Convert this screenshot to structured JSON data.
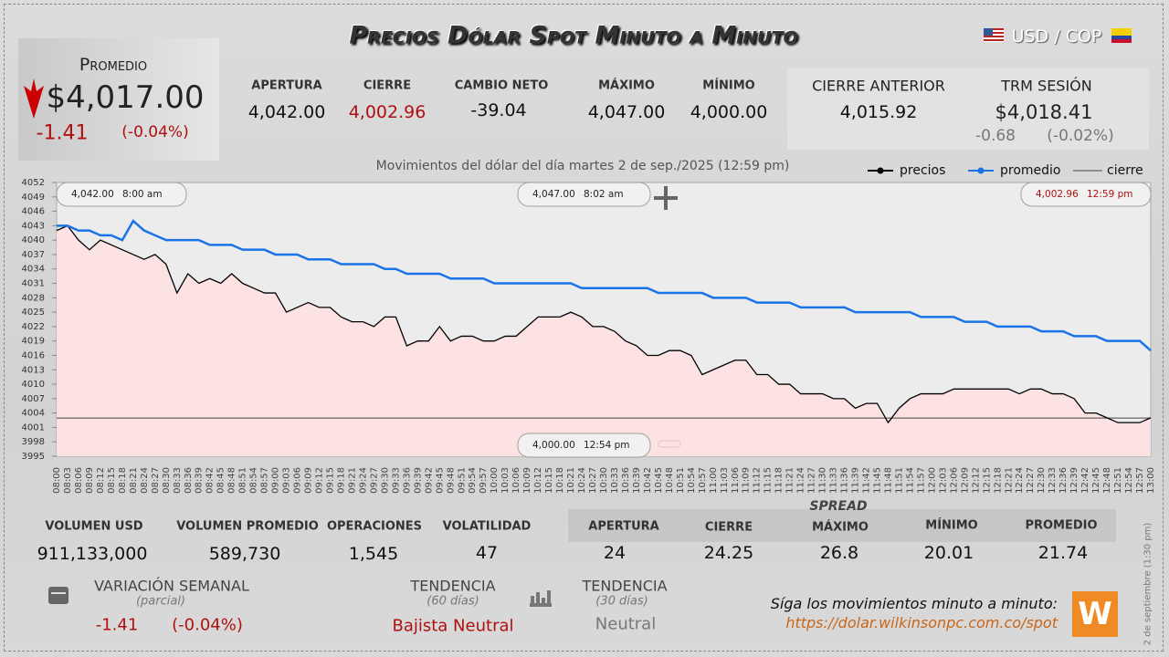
{
  "header": {
    "title": "Precios Dólar Spot Minuto a Minuto",
    "pair": "USD / COP"
  },
  "average_box": {
    "label": "Promedio",
    "value": "$4,017.00",
    "change": "-1.41",
    "change_pct": "(-0.04%)"
  },
  "stats": [
    {
      "label": "APERTURA",
      "value": "4,042.00"
    },
    {
      "label": "CIERRE",
      "value": "4,002.96"
    },
    {
      "label": "CAMBIO NETO",
      "value": "-39.04"
    },
    {
      "label": "MÁXIMO",
      "value": "4,047.00"
    },
    {
      "label": "MÍNIMO",
      "value": "4,000.00"
    }
  ],
  "previous_close": {
    "label": "CIERRE ANTERIOR",
    "value": "4,015.92"
  },
  "trm": {
    "label": "TRM SESIÓN",
    "value": "$4,018.41",
    "change": "-0.68",
    "change_pct": "(-0.02%)"
  },
  "chart_data": {
    "type": "line",
    "title": "Movimientos del dólar del día martes 2 de sep./2025 (12:59 pm)",
    "categories": [
      "08:00",
      "08:03",
      "08:06",
      "08:09",
      "08:12",
      "08:15",
      "08:18",
      "08:21",
      "08:24",
      "08:27",
      "08:30",
      "08:33",
      "08:36",
      "08:39",
      "08:42",
      "08:45",
      "08:48",
      "08:51",
      "08:54",
      "08:57",
      "09:00",
      "09:03",
      "09:06",
      "09:09",
      "09:12",
      "09:15",
      "09:18",
      "09:21",
      "09:24",
      "09:27",
      "09:30",
      "09:33",
      "09:36",
      "09:39",
      "09:42",
      "09:45",
      "09:48",
      "09:51",
      "09:54",
      "09:57",
      "10:00",
      "10:03",
      "10:06",
      "10:09",
      "10:12",
      "10:15",
      "10:18",
      "10:21",
      "10:24",
      "10:27",
      "10:30",
      "10:33",
      "10:36",
      "10:39",
      "10:42",
      "10:45",
      "10:48",
      "10:51",
      "10:54",
      "10:57",
      "11:00",
      "11:03",
      "11:06",
      "11:09",
      "11:12",
      "11:15",
      "11:18",
      "11:21",
      "11:24",
      "11:27",
      "11:30",
      "11:33",
      "11:36",
      "11:39",
      "11:42",
      "11:45",
      "11:48",
      "11:51",
      "11:54",
      "11:57",
      "12:00",
      "12:03",
      "12:06",
      "12:09",
      "12:12",
      "12:15",
      "12:18",
      "12:21",
      "12:24",
      "12:27",
      "12:30",
      "12:33",
      "12:36",
      "12:39",
      "12:42",
      "12:45",
      "12:48",
      "12:51",
      "12:54",
      "12:57",
      "13:00"
    ],
    "series": [
      {
        "name": "precios",
        "color": "#000000",
        "values": [
          4042,
          4043,
          4040,
          4038,
          4040,
          4039,
          4038,
          4037,
          4036,
          4037,
          4035,
          4029,
          4033,
          4031,
          4032,
          4031,
          4033,
          4031,
          4030,
          4029,
          4029,
          4025,
          4026,
          4027,
          4026,
          4026,
          4024,
          4023,
          4023,
          4022,
          4024,
          4024,
          4018,
          4019,
          4019,
          4022,
          4019,
          4020,
          4020,
          4019,
          4019,
          4020,
          4020,
          4022,
          4024,
          4024,
          4024,
          4025,
          4024,
          4022,
          4022,
          4021,
          4019,
          4018,
          4016,
          4016,
          4017,
          4017,
          4016,
          4012,
          4013,
          4014,
          4015,
          4015,
          4012,
          4012,
          4010,
          4010,
          4008,
          4008,
          4008,
          4007,
          4007,
          4005,
          4006,
          4006,
          4002,
          4005,
          4007,
          4008,
          4008,
          4008,
          4009,
          4009,
          4009,
          4009,
          4009,
          4009,
          4008,
          4009,
          4009,
          4008,
          4008,
          4007,
          4004,
          4004,
          4003,
          4002,
          4002,
          4002,
          4003
        ]
      },
      {
        "name": "promedio",
        "color": "#1a73e8",
        "values": [
          4043,
          4043,
          4042,
          4042,
          4041,
          4041,
          4040,
          4044,
          4042,
          4041,
          4040,
          4040,
          4040,
          4040,
          4039,
          4039,
          4039,
          4038,
          4038,
          4038,
          4037,
          4037,
          4037,
          4036,
          4036,
          4036,
          4035,
          4035,
          4035,
          4035,
          4034,
          4034,
          4033,
          4033,
          4033,
          4033,
          4032,
          4032,
          4032,
          4032,
          4031,
          4031,
          4031,
          4031,
          4031,
          4031,
          4031,
          4031,
          4030,
          4030,
          4030,
          4030,
          4030,
          4030,
          4030,
          4029,
          4029,
          4029,
          4029,
          4029,
          4028,
          4028,
          4028,
          4028,
          4027,
          4027,
          4027,
          4027,
          4026,
          4026,
          4026,
          4026,
          4026,
          4025,
          4025,
          4025,
          4025,
          4025,
          4025,
          4024,
          4024,
          4024,
          4024,
          4023,
          4023,
          4023,
          4022,
          4022,
          4022,
          4022,
          4021,
          4021,
          4021,
          4020,
          4020,
          4020,
          4019,
          4019,
          4019,
          4019,
          4017
        ]
      }
    ],
    "reference_line": {
      "name": "cierre",
      "value": 4002.96,
      "color": "#444444"
    },
    "area_color": "#ffe1e1",
    "ylim": [
      3995,
      4052
    ],
    "yticks": [
      3995,
      3998,
      4001,
      4004,
      4007,
      4010,
      4013,
      4016,
      4019,
      4022,
      4025,
      4028,
      4031,
      4034,
      4037,
      4040,
      4043,
      4046,
      4049,
      4052
    ],
    "annotations": [
      {
        "value": "4,042.00",
        "time": "8:00 am"
      },
      {
        "value": "4,047.00",
        "time": "8:02 am"
      },
      {
        "value": "4,002.96",
        "time": "12:59 pm"
      },
      {
        "value": "4,000.00",
        "time": "12:54 pm"
      }
    ]
  },
  "volume_stats": [
    {
      "label": "VOLUMEN USD",
      "value": "911,133,000"
    },
    {
      "label": "VOLUMEN PROMEDIO",
      "value": "589,730"
    },
    {
      "label": "OPERACIONES",
      "value": "1,545"
    },
    {
      "label": "VOLATILIDAD",
      "value": "47"
    }
  ],
  "spread": {
    "title": "SPREAD",
    "items": [
      {
        "label": "APERTURA",
        "value": "24"
      },
      {
        "label": "CIERRE",
        "value": "24.25"
      },
      {
        "label": "MÁXIMO",
        "value": "26.8"
      },
      {
        "label": "MÍNIMO",
        "value": "20.01"
      },
      {
        "label": "PROMEDIO",
        "value": "21.74"
      }
    ]
  },
  "weekly": {
    "label": "VARIACIÓN SEMANAL",
    "note": "(parcial)",
    "change": "-1.41",
    "change_pct": "(-0.04%)"
  },
  "trend_60": {
    "label": "TENDENCIA",
    "note": "(60 días)",
    "value": "Bajista Neutral"
  },
  "trend_30": {
    "label": "TENDENCIA",
    "note": "(30 días)",
    "value": "Neutral"
  },
  "footer": {
    "cta": "Síga los movimientos minuto a minuto:",
    "url": "https://dolar.wilkinsonpc.com.co/spot",
    "logo": "W",
    "timestamp": "2 de septiembre (1:30 pm)"
  }
}
